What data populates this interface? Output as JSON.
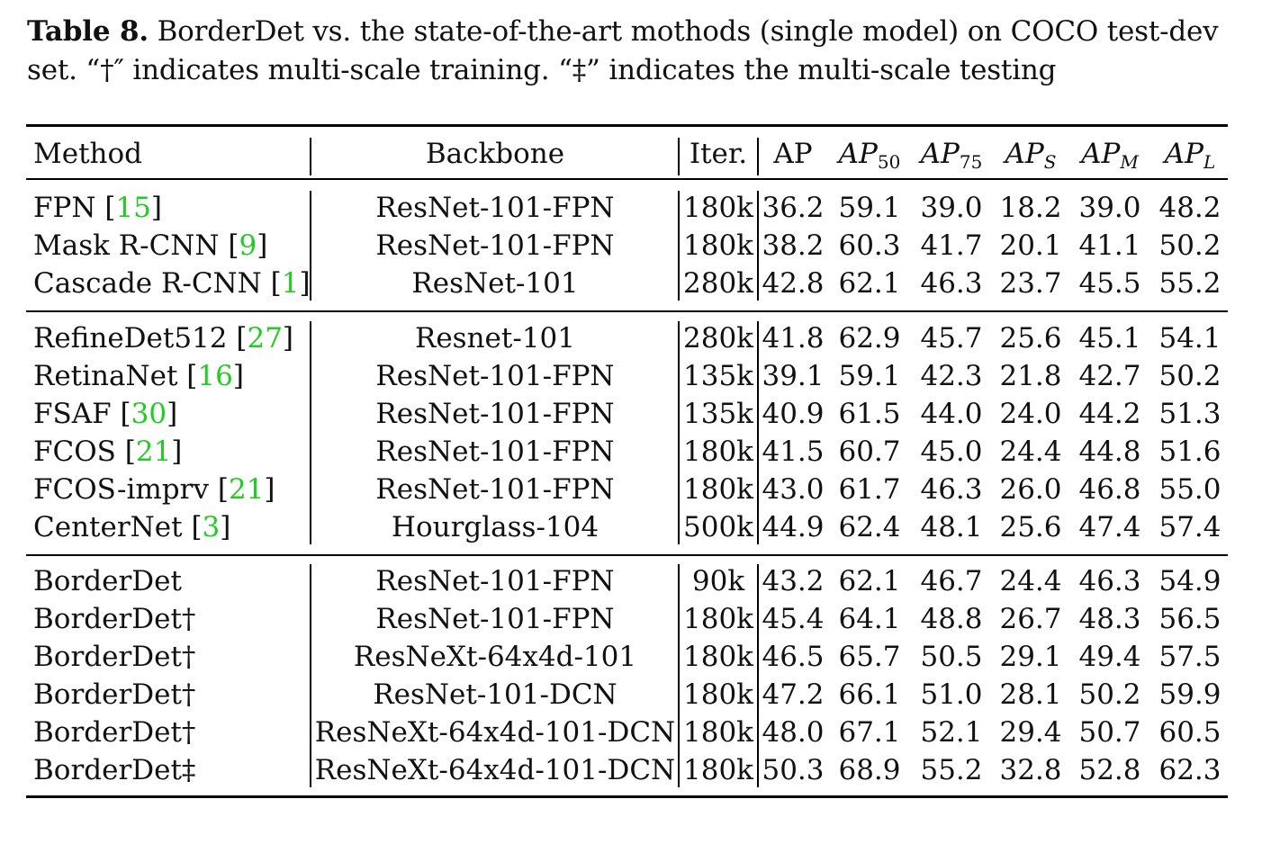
{
  "caption": {
    "label": "Table 8.",
    "line1": "BorderDet vs. the state-of-the-art mothods (single model) on COCO test-dev",
    "line2": "set. “†″ indicates multi-scale training. “‡” indicates the multi-scale testing"
  },
  "header": {
    "method": "Method",
    "backbone": "Backbone",
    "iter": "Iter.",
    "ap": "AP",
    "ap_italic": "AP",
    "ap50_sub": "50",
    "ap75_sub": "75",
    "aps_sub": "S",
    "apm_sub": "M",
    "apl_sub": "L"
  },
  "rows": [
    {
      "method": "FPN",
      "cite": "15",
      "backbone": "ResNet-101-FPN",
      "iter": "180k",
      "ap": "36.2",
      "ap50": "59.1",
      "ap75": "39.0",
      "aps": "18.2",
      "apm": "39.0",
      "apl": "48.2"
    },
    {
      "method": "Mask R-CNN",
      "cite": "9",
      "backbone": "ResNet-101-FPN",
      "iter": "180k",
      "ap": "38.2",
      "ap50": "60.3",
      "ap75": "41.7",
      "aps": "20.1",
      "apm": "41.1",
      "apl": "50.2"
    },
    {
      "method": "Cascade R-CNN",
      "cite": "1",
      "backbone": "ResNet-101",
      "iter": "280k",
      "ap": "42.8",
      "ap50": "62.1",
      "ap75": "46.3",
      "aps": "23.7",
      "apm": "45.5",
      "apl": "55.2"
    },
    {
      "method": "RefineDet512",
      "cite": "27",
      "backbone": "Resnet-101",
      "iter": "280k",
      "ap": "41.8",
      "ap50": "62.9",
      "ap75": "45.7",
      "aps": "25.6",
      "apm": "45.1",
      "apl": "54.1"
    },
    {
      "method": "RetinaNet",
      "cite": "16",
      "backbone": "ResNet-101-FPN",
      "iter": "135k",
      "ap": "39.1",
      "ap50": "59.1",
      "ap75": "42.3",
      "aps": "21.8",
      "apm": "42.7",
      "apl": "50.2"
    },
    {
      "method": "FSAF",
      "cite": "30",
      "backbone": "ResNet-101-FPN",
      "iter": "135k",
      "ap": "40.9",
      "ap50": "61.5",
      "ap75": "44.0",
      "aps": "24.0",
      "apm": "44.2",
      "apl": "51.3"
    },
    {
      "method": "FCOS",
      "cite": "21",
      "backbone": "ResNet-101-FPN",
      "iter": "180k",
      "ap": "41.5",
      "ap50": "60.7",
      "ap75": "45.0",
      "aps": "24.4",
      "apm": "44.8",
      "apl": "51.6"
    },
    {
      "method": "FCOS-imprv",
      "cite": "21",
      "backbone": "ResNet-101-FPN",
      "iter": "180k",
      "ap": "43.0",
      "ap50": "61.7",
      "ap75": "46.3",
      "aps": "26.0",
      "apm": "46.8",
      "apl": "55.0"
    },
    {
      "method": "CenterNet",
      "cite": "3",
      "backbone": "Hourglass-104",
      "iter": "500k",
      "ap": "44.9",
      "ap50": "62.4",
      "ap75": "48.1",
      "aps": "25.6",
      "apm": "47.4",
      "apl": "57.4"
    },
    {
      "method": "BorderDet",
      "cite": "",
      "backbone": "ResNet-101-FPN",
      "iter": "90k",
      "ap": "43.2",
      "ap50": "62.1",
      "ap75": "46.7",
      "aps": "24.4",
      "apm": "46.3",
      "apl": "54.9"
    },
    {
      "method": "BorderDet†",
      "cite": "",
      "backbone": "ResNet-101-FPN",
      "iter": "180k",
      "ap": "45.4",
      "ap50": "64.1",
      "ap75": "48.8",
      "aps": "26.7",
      "apm": "48.3",
      "apl": "56.5"
    },
    {
      "method": "BorderDet†",
      "cite": "",
      "backbone": "ResNeXt-64x4d-101",
      "iter": "180k",
      "ap": "46.5",
      "ap50": "65.7",
      "ap75": "50.5",
      "aps": "29.1",
      "apm": "49.4",
      "apl": "57.5"
    },
    {
      "method": "BorderDet†",
      "cite": "",
      "backbone": "ResNet-101-DCN",
      "iter": "180k",
      "ap": "47.2",
      "ap50": "66.1",
      "ap75": "51.0",
      "aps": "28.1",
      "apm": "50.2",
      "apl": "59.9"
    },
    {
      "method": "BorderDet†",
      "cite": "",
      "backbone": "ResNeXt-64x4d-101-DCN",
      "iter": "180k",
      "ap": "48.0",
      "ap50": "67.1",
      "ap75": "52.1",
      "aps": "29.4",
      "apm": "50.7",
      "apl": "60.5"
    },
    {
      "method": "BorderDet‡",
      "cite": "",
      "backbone": "ResNeXt-64x4d-101-DCN",
      "iter": "180k",
      "ap": "50.3",
      "ap50": "68.9",
      "ap75": "55.2",
      "aps": "32.8",
      "apm": "52.8",
      "apl": "62.3"
    }
  ]
}
